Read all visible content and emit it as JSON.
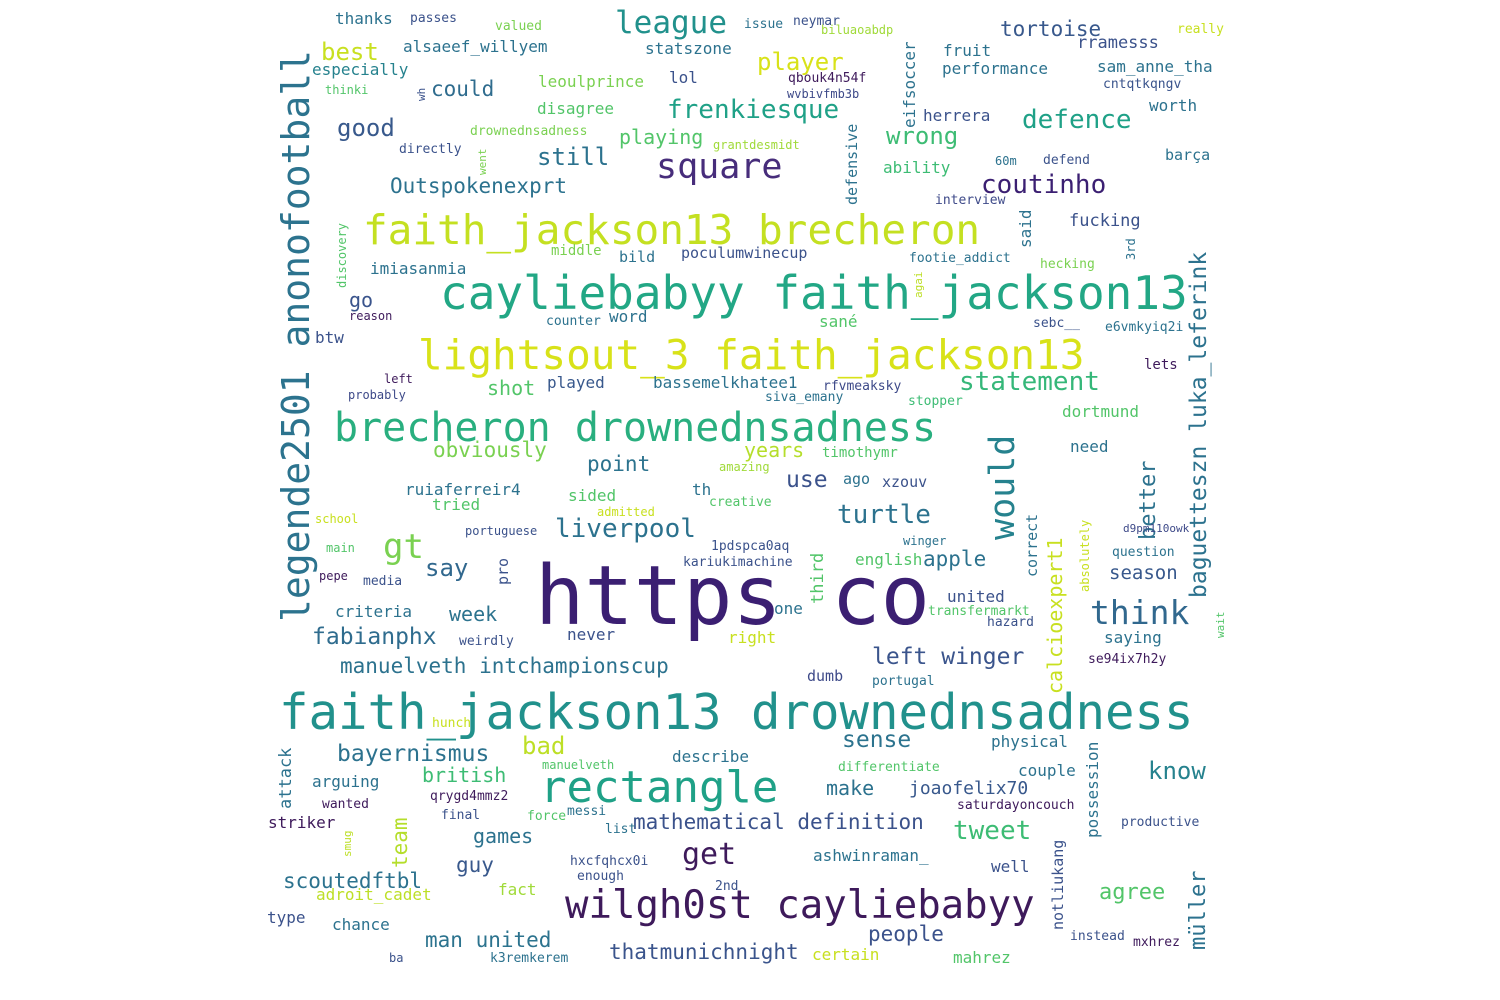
{
  "words": {
    "https_co": {
      "text": "https co",
      "color": "#3b1f72"
    },
    "faith_drowned": {
      "text": "faith_jackson13 drownednsadness",
      "color": "#21918c"
    },
    "caylie_faith": {
      "text": "cayliebabyy faith_jackson13",
      "color": "#22a785"
    },
    "lightsout": {
      "text": "lightsout_3 faith_jackson13",
      "color": "#d8e219"
    },
    "faith_brecheron": {
      "text": "faith_jackson13 brecheron",
      "color": "#c4e021"
    },
    "brecheron_drowned": {
      "text": "brecheron drownednsadness",
      "color": "#29af7f"
    },
    "wilgh0st": {
      "text": "wilgh0st cayliebabyy",
      "color": "#3e1a5b"
    },
    "rectangle": {
      "text": "rectangle",
      "color": "#1fa187"
    },
    "legende": {
      "text": "legende2501 anonofootball",
      "color": "#2c738e"
    },
    "square": {
      "text": "square",
      "color": "#472d7b"
    },
    "would": {
      "text": "would",
      "color": "#26828e"
    },
    "league": {
      "text": "league",
      "color": "#21918c"
    },
    "think": {
      "text": "think",
      "color": "#31688e"
    },
    "statement": {
      "text": "statement",
      "color": "#35b779"
    },
    "coutinho": {
      "text": "coutinho",
      "color": "#3b1f72"
    },
    "frenkiesque": {
      "text": "frenkiesque",
      "color": "#1fa187"
    },
    "defence": {
      "text": "defence",
      "color": "#1fa187"
    },
    "player": {
      "text": "player",
      "color": "#d8e219"
    },
    "wrong": {
      "text": "wrong",
      "color": "#3dbc74"
    },
    "gt": {
      "text": "gt",
      "color": "#7ad151"
    },
    "get": {
      "text": "get",
      "color": "#3e1a5b"
    },
    "liverpool": {
      "text": "liverpool",
      "color": "#2c728e"
    },
    "baguetteszn": {
      "text": "baguetteszn luka_leferink",
      "color": "#2c728e"
    },
    "turtle": {
      "text": "turtle",
      "color": "#2c728e"
    },
    "left_winger": {
      "text": "left winger",
      "color": "#3a548c"
    },
    "best": {
      "text": "best",
      "color": "#c8e020"
    },
    "good": {
      "text": "good",
      "color": "#38598c"
    },
    "still": {
      "text": "still",
      "color": "#2c728e"
    },
    "outspoken": {
      "text": "Outspokenexprt",
      "color": "#2c728e"
    },
    "manuelveth_int": {
      "text": "manuelveth intchampionscup",
      "color": "#2c728e"
    },
    "mathematical": {
      "text": "mathematical definition",
      "color": "#3b528b"
    },
    "bayernismus": {
      "text": "bayernismus",
      "color": "#2c728e"
    },
    "fabianphx": {
      "text": "fabianphx",
      "color": "#2f6c8e"
    },
    "say": {
      "text": "say",
      "color": "#31688e"
    },
    "sense": {
      "text": "sense",
      "color": "#2c738e"
    },
    "tweet": {
      "text": "tweet",
      "color": "#3dbc74"
    },
    "know": {
      "text": "know",
      "color": "#26828e"
    },
    "bad": {
      "text": "bad",
      "color": "#bddf26"
    },
    "better": {
      "text": "better",
      "color": "#2c728e"
    },
    "calcioexpert": {
      "text": "calcioexpert1",
      "color": "#c8e020"
    },
    "team": {
      "text": "team",
      "color": "#b5de2b"
    },
    "muller": {
      "text": "müller",
      "color": "#2c728e"
    },
    "man_united": {
      "text": "man united",
      "color": "#2c738e"
    },
    "thatmunich": {
      "text": "thatmunichnight",
      "color": "#3a548c"
    },
    "scoutedftbl": {
      "text": "scoutedftbl",
      "color": "#2c728e"
    },
    "agree": {
      "text": "agree",
      "color": "#52c569"
    },
    "people": {
      "text": "people",
      "color": "#3b528b"
    },
    "point": {
      "text": "point",
      "color": "#2c738e"
    },
    "use": {
      "text": "use",
      "color": "#3b528b"
    },
    "apple": {
      "text": "apple",
      "color": "#2c728e"
    },
    "obviously": {
      "text": "obviously",
      "color": "#7ad151"
    },
    "season": {
      "text": "season",
      "color": "#38588c"
    },
    "week": {
      "text": "week",
      "color": "#2c738e"
    },
    "could": {
      "text": "could",
      "color": "#2f6c8e"
    },
    "playing": {
      "text": "playing",
      "color": "#52c569"
    },
    "shot": {
      "text": "shot",
      "color": "#52c569"
    },
    "years": {
      "text": "years",
      "color": "#b5de2b"
    },
    "go": {
      "text": "go",
      "color": "#3a548c"
    },
    "games": {
      "text": "games",
      "color": "#2c728e"
    },
    "guy": {
      "text": "guy",
      "color": "#38588c"
    },
    "british": {
      "text": "british",
      "color": "#3dbc74"
    },
    "make": {
      "text": "make",
      "color": "#2c728e"
    },
    "joaofelix": {
      "text": "joaofelix70",
      "color": "#38588c"
    },
    "tortoise": {
      "text": "tortoise",
      "color": "#38588c"
    },
    "alsaeef": {
      "text": "alsaeef_willyem",
      "color": "#2c728e"
    },
    "statszone": {
      "text": "statszone",
      "color": "#2c728e"
    },
    "especially": {
      "text": "especially",
      "color": "#26828e"
    },
    "thanks": {
      "text": "thanks",
      "color": "#2c728e"
    },
    "passes": {
      "text": "passes",
      "color": "#3b528b"
    },
    "valued": {
      "text": "valued",
      "color": "#7ad151"
    },
    "issue": {
      "text": "issue",
      "color": "#2c728e"
    },
    "neymar": {
      "text": "neymar",
      "color": "#3b528b"
    },
    "biluaoabdp": {
      "text": "biluaoabdp",
      "color": "#a0da39"
    },
    "really": {
      "text": "really",
      "color": "#c8e020"
    },
    "rramesss": {
      "text": "rramesss",
      "color": "#3b528b"
    },
    "sam_anne": {
      "text": "sam_anne_tha",
      "color": "#2c728e"
    },
    "cntqtkqngv": {
      "text": "cntqtkqngv",
      "color": "#3a548c"
    },
    "fruit": {
      "text": "fruit",
      "color": "#2c728e"
    },
    "performance": {
      "text": "performance",
      "color": "#2c728e"
    },
    "eifsoccer": {
      "text": "eifsoccer",
      "color": "#2c728e"
    },
    "qbouk": {
      "text": "qbouk4n54f",
      "color": "#3e1a5b"
    },
    "wvbivfmb3b": {
      "text": "wvbivfmb3b",
      "color": "#3e4a89"
    },
    "leoulprince": {
      "text": "leoulprince",
      "color": "#7ad151"
    },
    "lol": {
      "text": "lol",
      "color": "#3b528b"
    },
    "thinki": {
      "text": "thinki",
      "color": "#52c569"
    },
    "wh": {
      "text": "wh",
      "color": "#3b528b"
    },
    "disagree": {
      "text": "disagree",
      "color": "#52c569"
    },
    "herrera": {
      "text": "herrera",
      "color": "#3b528b"
    },
    "worth": {
      "text": "worth",
      "color": "#2c728e"
    },
    "drowned_small": {
      "text": "drownednsadness",
      "color": "#7ad151"
    },
    "grantdesmidt": {
      "text": "grantdesmidt",
      "color": "#a0da39"
    },
    "directly": {
      "text": "directly",
      "color": "#3b528b"
    },
    "went": {
      "text": "went",
      "color": "#7ad151"
    },
    "defensive": {
      "text": "defensive",
      "color": "#2c728e"
    },
    "ability": {
      "text": "ability",
      "color": "#3dbc74"
    },
    "sixty_m": {
      "text": "60m",
      "color": "#2c728e"
    },
    "defend": {
      "text": "defend",
      "color": "#3b528b"
    },
    "barca": {
      "text": "barça",
      "color": "#2c728e"
    },
    "interview": {
      "text": "interview",
      "color": "#3e4a89"
    },
    "fucking": {
      "text": "fucking",
      "color": "#3b528b"
    },
    "said": {
      "text": "said",
      "color": "#2c728e"
    },
    "discovery": {
      "text": "discovery",
      "color": "#52c569"
    },
    "imiasanmia": {
      "text": "imiasanmia",
      "color": "#2c728e"
    },
    "middle": {
      "text": "middle",
      "color": "#7ad151"
    },
    "bild": {
      "text": "bild",
      "color": "#2c728e"
    },
    "poculum": {
      "text": "poculumwinecup",
      "color": "#3b528b"
    },
    "footie": {
      "text": "footie_addict",
      "color": "#2c728e"
    },
    "hecking": {
      "text": "hecking",
      "color": "#7ad151"
    },
    "third_3rd": {
      "text": "3rd",
      "color": "#2c728e"
    },
    "agai": {
      "text": "agai",
      "color": "#bddf26"
    },
    "reason": {
      "text": "reason",
      "color": "#3e1a5b"
    },
    "counter": {
      "text": "counter",
      "color": "#2c728e"
    },
    "word": {
      "text": "word",
      "color": "#2c728e"
    },
    "sane": {
      "text": "sané",
      "color": "#52c569"
    },
    "sebc": {
      "text": "sebc__",
      "color": "#3b528b"
    },
    "e6vmk": {
      "text": "e6vmkyiq2i",
      "color": "#2c728e"
    },
    "btw": {
      "text": "btw",
      "color": "#3b528b"
    },
    "lets": {
      "text": "lets",
      "color": "#3e1a5b"
    },
    "left": {
      "text": "left",
      "color": "#3e1a5b"
    },
    "probably": {
      "text": "probably",
      "color": "#3e4a89"
    },
    "played": {
      "text": "played",
      "color": "#38588c"
    },
    "bassem": {
      "text": "bassemelkhatee1",
      "color": "#2c728e"
    },
    "rfvmeaksky": {
      "text": "rfvmeaksky",
      "color": "#3e4a89"
    },
    "siva_emany": {
      "text": "siva_emany",
      "color": "#2c728e"
    },
    "stopper": {
      "text": "stopper",
      "color": "#3dbc74"
    },
    "dortmund": {
      "text": "dortmund",
      "color": "#52c569"
    },
    "need": {
      "text": "need",
      "color": "#2c728e"
    },
    "timothymr": {
      "text": "timothymr",
      "color": "#52c569"
    },
    "amazing": {
      "text": "amazing",
      "color": "#a0da39"
    },
    "ago": {
      "text": "ago",
      "color": "#2c728e"
    },
    "xzouv": {
      "text": "xzouv",
      "color": "#3b528b"
    },
    "ruiaferreir": {
      "text": "ruiaferreir4",
      "color": "#2c728e"
    },
    "tried": {
      "text": "tried",
      "color": "#52c569"
    },
    "sided": {
      "text": "sided",
      "color": "#52c569"
    },
    "th": {
      "text": "th",
      "color": "#2c728e"
    },
    "creative": {
      "text": "creative",
      "color": "#52c569"
    },
    "school": {
      "text": "school",
      "color": "#c8e020"
    },
    "admitted": {
      "text": "admitted",
      "color": "#c8e020"
    },
    "portuguese": {
      "text": "portuguese",
      "color": "#3b528b"
    },
    "d9pm": {
      "text": "d9pm110owk",
      "color": "#3e4a89"
    },
    "absolutely": {
      "text": "absolutely",
      "color": "#c8e020"
    },
    "main": {
      "text": "main",
      "color": "#52c569"
    },
    "pro": {
      "text": "pro",
      "color": "#3b528b"
    },
    "onepdspca": {
      "text": "1pdspca0aq",
      "color": "#3b528b"
    },
    "kariuki": {
      "text": "kariukimachine",
      "color": "#3b528b"
    },
    "third": {
      "text": "third",
      "color": "#52c569"
    },
    "english": {
      "text": "english",
      "color": "#52c569"
    },
    "winger": {
      "text": "winger",
      "color": "#2c728e"
    },
    "correct": {
      "text": "correct",
      "color": "#2c728e"
    },
    "question": {
      "text": "question",
      "color": "#2c728e"
    },
    "pepe": {
      "text": "pepe",
      "color": "#3e1a5b"
    },
    "media": {
      "text": "media",
      "color": "#3b528b"
    },
    "united": {
      "text": "united",
      "color": "#3b528b"
    },
    "transfermarkt": {
      "text": "transfermarkt",
      "color": "#52c569"
    },
    "hazard": {
      "text": "hazard",
      "color": "#3b528b"
    },
    "wait": {
      "text": "wait",
      "color": "#52c569"
    },
    "criteria": {
      "text": "criteria",
      "color": "#2c728e"
    },
    "never": {
      "text": "never",
      "color": "#3b528b"
    },
    "one": {
      "text": "one",
      "color": "#2c728e"
    },
    "right": {
      "text": "right",
      "color": "#c8e020"
    },
    "weirdly": {
      "text": "weirdly",
      "color": "#3b528b"
    },
    "saying": {
      "text": "saying",
      "color": "#2c728e"
    },
    "se94": {
      "text": "se94ix7h2y",
      "color": "#3e1a5b"
    },
    "dumb": {
      "text": "dumb",
      "color": "#3e4a89"
    },
    "portugal": {
      "text": "portugal",
      "color": "#2c728e"
    },
    "hunch": {
      "text": "hunch",
      "color": "#c8e020"
    },
    "attack": {
      "text": "attack",
      "color": "#2c728e"
    },
    "describe": {
      "text": "describe",
      "color": "#2c728e"
    },
    "physical": {
      "text": "physical",
      "color": "#2c728e"
    },
    "possession": {
      "text": "possession",
      "color": "#2c728e"
    },
    "arguing": {
      "text": "arguing",
      "color": "#2c728e"
    },
    "manuelveth": {
      "text": "manuelveth",
      "color": "#52c569"
    },
    "differentiate": {
      "text": "differentiate",
      "color": "#52c569"
    },
    "couple": {
      "text": "couple",
      "color": "#2c728e"
    },
    "wanted": {
      "text": "wanted",
      "color": "#3e1a5b"
    },
    "qrygd": {
      "text": "qrygd4mmz2",
      "color": "#3e1a5b"
    },
    "messi": {
      "text": "messi",
      "color": "#2c728e"
    },
    "saturday": {
      "text": "saturdayoncouch",
      "color": "#3e1a5b"
    },
    "striker": {
      "text": "striker",
      "color": "#3e1a5b"
    },
    "final": {
      "text": "final",
      "color": "#3b528b"
    },
    "force": {
      "text": "force",
      "color": "#52c569"
    },
    "list": {
      "text": "list",
      "color": "#2c728e"
    },
    "productive": {
      "text": "productive",
      "color": "#3b528b"
    },
    "smug": {
      "text": "smug",
      "color": "#bddf26"
    },
    "ashwin": {
      "text": "ashwinraman_",
      "color": "#2c728e"
    },
    "hxcfq": {
      "text": "hxcfqhcx0i",
      "color": "#3b528b"
    },
    "notliukang": {
      "text": "notliukang",
      "color": "#3b528b"
    },
    "well": {
      "text": "well",
      "color": "#3b528b"
    },
    "enough": {
      "text": "enough",
      "color": "#3b528b"
    },
    "fact": {
      "text": "fact",
      "color": "#a0da39"
    },
    "two_nd": {
      "text": "2nd",
      "color": "#3b528b"
    },
    "adroit": {
      "text": "adroit_cadet",
      "color": "#bddf26"
    },
    "type": {
      "text": "type",
      "color": "#3b528b"
    },
    "chance": {
      "text": "chance",
      "color": "#2c728e"
    },
    "instead": {
      "text": "instead",
      "color": "#3b528b"
    },
    "mxhrez": {
      "text": "mxhrez",
      "color": "#3e1a5b"
    },
    "ba": {
      "text": "ba",
      "color": "#3b528b"
    },
    "k3remkerem": {
      "text": "k3remkerem",
      "color": "#2c728e"
    },
    "certain": {
      "text": "certain",
      "color": "#c8e020"
    },
    "mahrez": {
      "text": "mahrez",
      "color": "#52c569"
    }
  }
}
